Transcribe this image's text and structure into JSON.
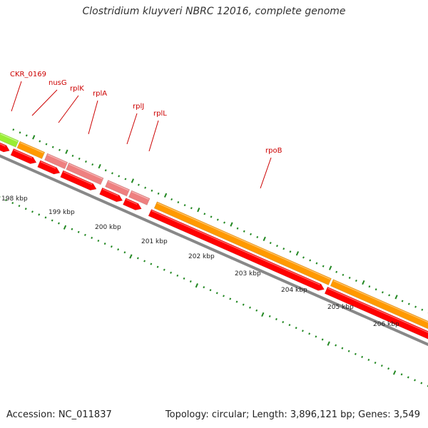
{
  "title": "Clostridium kluyveri NBRC 12016, complete genome",
  "footer": {
    "accession": "Accession: NC_011837",
    "summary": "Topology: circular; Length: 3,896,121 bp; Genes: 3,549"
  },
  "colors": {
    "cds": "#ff0000",
    "gene": "#ff9900",
    "rrna_like": "#ee8080",
    "misc": "#99ee33",
    "label": "#cc0000",
    "tick": "#228822",
    "backbone": "#888888"
  },
  "gene_labels": [
    {
      "text": "CKR_0169"
    },
    {
      "text": "nusG"
    },
    {
      "text": "rplK"
    },
    {
      "text": "rplA"
    },
    {
      "text": "rplJ"
    },
    {
      "text": "rplL"
    },
    {
      "text": "rpoB"
    }
  ],
  "kbp_labels": [
    "198 kbp",
    "199 kbp",
    "200 kbp",
    "201 kbp",
    "202 kbp",
    "203 kbp",
    "204 kbp",
    "205 kbp",
    "206 kbp"
  ]
}
